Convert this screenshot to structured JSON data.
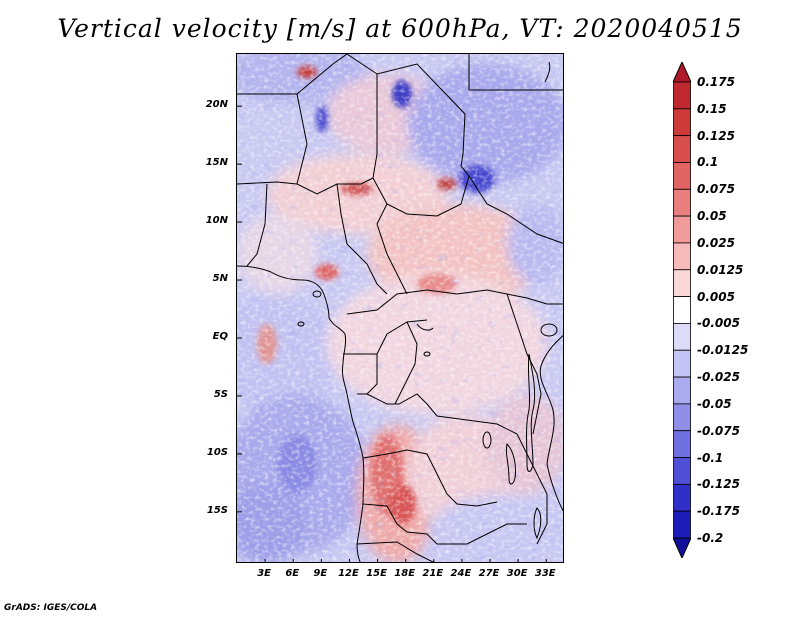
{
  "title": "Vertical velocity [m/s] at 600hPa, VT: 2020040515",
  "footer": "GrADS: IGES/COLA",
  "map": {
    "region": "Central Africa",
    "variable": "vertical velocity",
    "units": "m/s",
    "level": "600hPa",
    "valid_time": "2020040515",
    "lat_range": [
      -19.5,
      24.5
    ],
    "lon_range": [
      0,
      35
    ],
    "lat_ticks": [
      {
        "value": 20,
        "label": "20N"
      },
      {
        "value": 15,
        "label": "15N"
      },
      {
        "value": 10,
        "label": "10N"
      },
      {
        "value": 5,
        "label": "5N"
      },
      {
        "value": 0,
        "label": "EQ"
      },
      {
        "value": -5,
        "label": "5S"
      },
      {
        "value": -10,
        "label": "10S"
      },
      {
        "value": -15,
        "label": "15S"
      }
    ],
    "lon_ticks": [
      {
        "value": 3,
        "label": "3E"
      },
      {
        "value": 6,
        "label": "6E"
      },
      {
        "value": 9,
        "label": "9E"
      },
      {
        "value": 12,
        "label": "12E"
      },
      {
        "value": 15,
        "label": "15E"
      },
      {
        "value": 18,
        "label": "18E"
      },
      {
        "value": 21,
        "label": "21E"
      },
      {
        "value": 24,
        "label": "24E"
      },
      {
        "value": 27,
        "label": "27E"
      },
      {
        "value": 30,
        "label": "30E"
      },
      {
        "value": 33,
        "label": "33E"
      }
    ]
  },
  "colorbar": {
    "levels": [
      "0.175",
      "0.15",
      "0.125",
      "0.1",
      "0.075",
      "0.05",
      "0.025",
      "0.0125",
      "0.005",
      "-0.005",
      "-0.0125",
      "-0.025",
      "-0.05",
      "-0.075",
      "-0.1",
      "-0.125",
      "-0.175",
      "-0.2"
    ],
    "colors": [
      "#b2182b",
      "#c0282f",
      "#cc3a3a",
      "#d84e4e",
      "#e06464",
      "#e87e7e",
      "#f09a9a",
      "#f6baba",
      "#fbd8d8",
      "#ffffff",
      "#dcdcfa",
      "#c4c4f5",
      "#aaaaef",
      "#8f8fe8",
      "#7070e0",
      "#5050d6",
      "#3030c8",
      "#1c1cb8",
      "#10109a"
    ]
  }
}
